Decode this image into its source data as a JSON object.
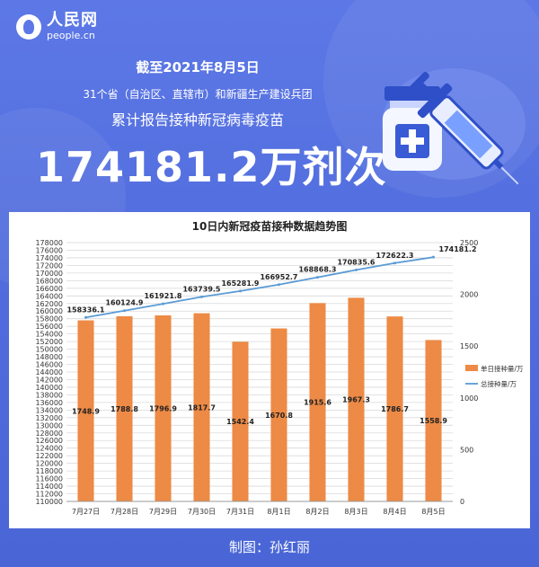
{
  "header": {
    "logo_cn": "人民网",
    "logo_en": "people.cn",
    "date_line": "截至2021年8月5日",
    "region_line": "31个省（自治区、直辖市）和新疆生产建设兵团",
    "desc_line": "累计报告接种新冠病毒疫苗",
    "total": "174181.2万剂次"
  },
  "footer": "制图：孙红丽",
  "colors": {
    "bar": "#ed8a45",
    "line": "#5b9bd5",
    "background": "#5874e3"
  },
  "chart_data": {
    "type": "bar",
    "title": "10日内新冠疫苗接种数据趋势图",
    "categories": [
      "7月27日",
      "7月28日",
      "7月29日",
      "7月30日",
      "7月31日",
      "8月1日",
      "8月2日",
      "8月3日",
      "8月4日",
      "8月5日"
    ],
    "series": [
      {
        "name": "单日接种量/万",
        "type": "bar",
        "axis": "right",
        "values": [
          1748.9,
          1788.8,
          1796.9,
          1817.7,
          1542.4,
          1670.8,
          1915.6,
          1967.3,
          1786.7,
          1558.9
        ]
      },
      {
        "name": "总接种量/万",
        "type": "line",
        "axis": "left",
        "values": [
          158336.1,
          160124.9,
          161921.8,
          163739.5,
          165281.9,
          166952.7,
          168868.3,
          170835.6,
          172622.3,
          174181.2
        ]
      }
    ],
    "left_axis": {
      "min": 110000,
      "max": 178000,
      "step": 2000
    },
    "right_axis": {
      "min": 0,
      "max": 2500,
      "step": 500
    },
    "legend_position": "right"
  }
}
